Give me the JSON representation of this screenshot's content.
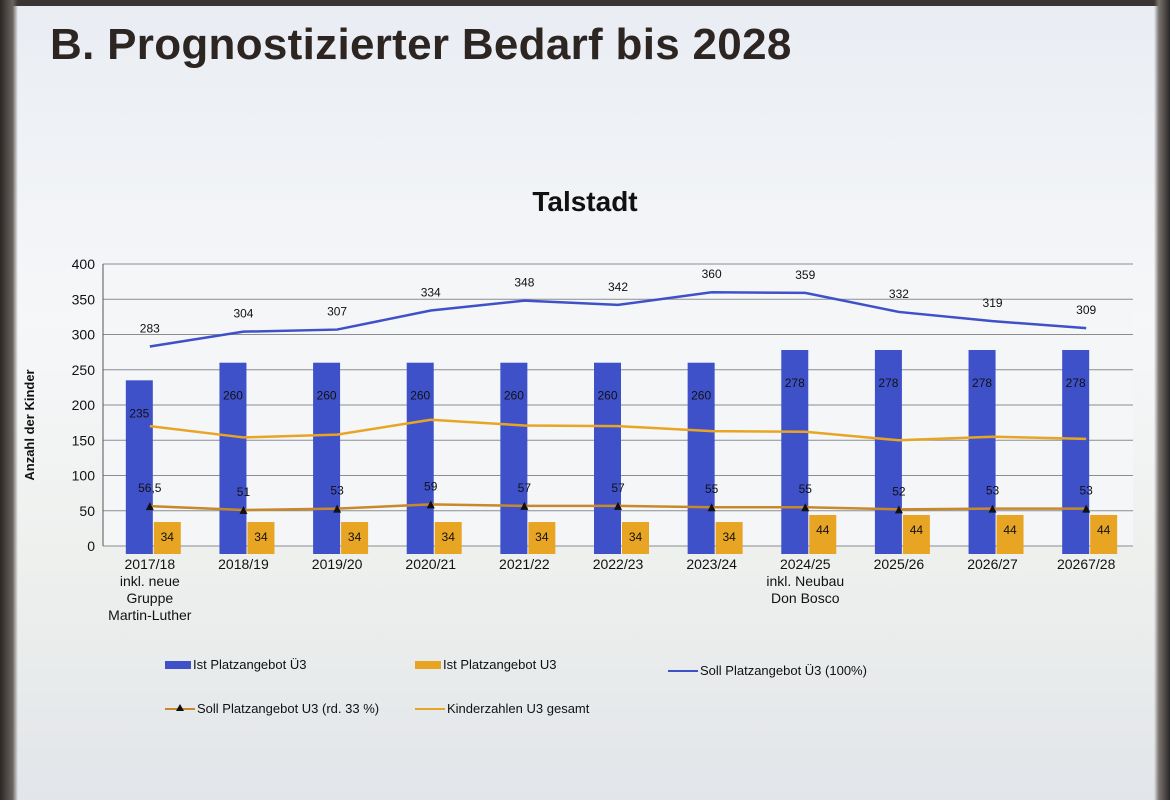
{
  "slide": {
    "title": "B. Prognostizierter Bedarf bis 2028"
  },
  "chart_data": {
    "type": "bar",
    "title": "Talstadt",
    "xlabel": "",
    "ylabel": "Anzahl der Kinder",
    "ylim": [
      0,
      400
    ],
    "yticks": [
      0,
      50,
      100,
      150,
      200,
      250,
      300,
      350,
      400
    ],
    "grid": true,
    "legend_position": "bottom",
    "categories": [
      [
        "2017/18",
        "inkl. neue",
        "Gruppe",
        "Martin-Luther"
      ],
      [
        "2018/19"
      ],
      [
        "2019/20"
      ],
      [
        "2020/21"
      ],
      [
        "2021/22"
      ],
      [
        "2022/23"
      ],
      [
        "2023/24"
      ],
      [
        "2024/25",
        "inkl. Neubau",
        "Don Bosco"
      ],
      [
        "2025/26"
      ],
      [
        "2026/27"
      ],
      [
        "20267/28"
      ]
    ],
    "series": [
      {
        "name": "Ist Platzangebot Ü3",
        "kind": "bar",
        "color": "#3f51c9",
        "values": [
          235,
          260,
          260,
          260,
          260,
          260,
          260,
          278,
          278,
          278,
          278
        ],
        "labels": [
          "235",
          "260",
          "260",
          "260",
          "260",
          "260",
          "260",
          "278",
          "278",
          "278",
          "278"
        ]
      },
      {
        "name": "Ist Platzangebot U3",
        "kind": "bar",
        "color": "#e8a524",
        "values": [
          34,
          34,
          34,
          34,
          34,
          34,
          34,
          44,
          44,
          44,
          44
        ],
        "labels": [
          "34",
          "34",
          "34",
          "34",
          "34",
          "34",
          "34",
          "44",
          "44",
          "44",
          "44"
        ]
      },
      {
        "name": "Soll Platzangebot Ü3 (100%)",
        "kind": "line",
        "color": "#3f51c9",
        "values": [
          283,
          304,
          307,
          334,
          348,
          342,
          360,
          359,
          332,
          319,
          309
        ],
        "labels": [
          "283",
          "304",
          "307",
          "334",
          "348",
          "342",
          "360",
          "359",
          "332",
          "319",
          "309"
        ]
      },
      {
        "name": "Soll Platzangebot U3 (rd. 33 %)",
        "kind": "line-marker",
        "color": "#c8892a",
        "marker_color": "#111111",
        "values": [
          56.5,
          51,
          53,
          59,
          57,
          57,
          55,
          55,
          52,
          53,
          53
        ],
        "labels": [
          "56,5",
          "51",
          "53",
          "59",
          "57",
          "57",
          "55",
          "55",
          "52",
          "53",
          "53"
        ]
      },
      {
        "name": "Kinderzahlen U3 gesamt",
        "kind": "line",
        "color": "#e8a524",
        "values": [
          170,
          154,
          158,
          179,
          171,
          170,
          163,
          162,
          150,
          155,
          152
        ]
      }
    ]
  }
}
